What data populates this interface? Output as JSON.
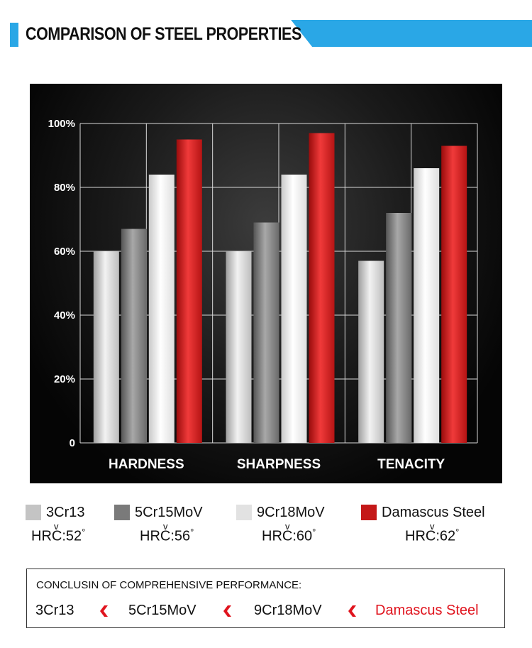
{
  "header": {
    "title": "COMPARISON OF STEEL PROPERTIES"
  },
  "colors": {
    "accent_blue": "#2aa7e6",
    "series_3Cr13": "#c4c4c4",
    "series_5Cr15MoV": "#7a7a7a",
    "series_9Cr18MoV": "#e2e2e2",
    "series_damascus": "#c41818",
    "highlight_red": "#e0141e"
  },
  "chart_data": {
    "type": "bar",
    "categories": [
      "HARDNESS",
      "SHARPNESS",
      "TENACITY"
    ],
    "series": [
      {
        "name": "3Cr13",
        "values": [
          60,
          60,
          57
        ]
      },
      {
        "name": "5Cr15MoV",
        "values": [
          67,
          69,
          72
        ]
      },
      {
        "name": "9Cr18MoV",
        "values": [
          84,
          84,
          86
        ]
      },
      {
        "name": "Damascus Steel",
        "values": [
          95,
          97,
          93
        ]
      }
    ],
    "yticks": [
      "0",
      "20%",
      "40%",
      "60%",
      "80%",
      "100%"
    ],
    "ytick_values": [
      0,
      20,
      40,
      60,
      80,
      100
    ],
    "ylim": [
      0,
      100
    ],
    "grid": true,
    "legend_position": "bottom"
  },
  "legend": {
    "items": [
      {
        "label": "3Cr13",
        "hrc": "HRC:52"
      },
      {
        "label": "5Cr15MoV",
        "hrc": "HRC:56"
      },
      {
        "label": "9Cr18MoV",
        "hrc": "HRC:60"
      },
      {
        "label": "Damascus Steel",
        "hrc": "HRC:62"
      }
    ],
    "degree_symbol": "°",
    "v_mark": "v"
  },
  "conclusion": {
    "title": "CONCLUSIN OF COMPREHENSIVE PERFORMANCE:",
    "ranking": [
      "3Cr13",
      "5Cr15MoV",
      "9Cr18MoV",
      "Damascus Steel"
    ]
  }
}
